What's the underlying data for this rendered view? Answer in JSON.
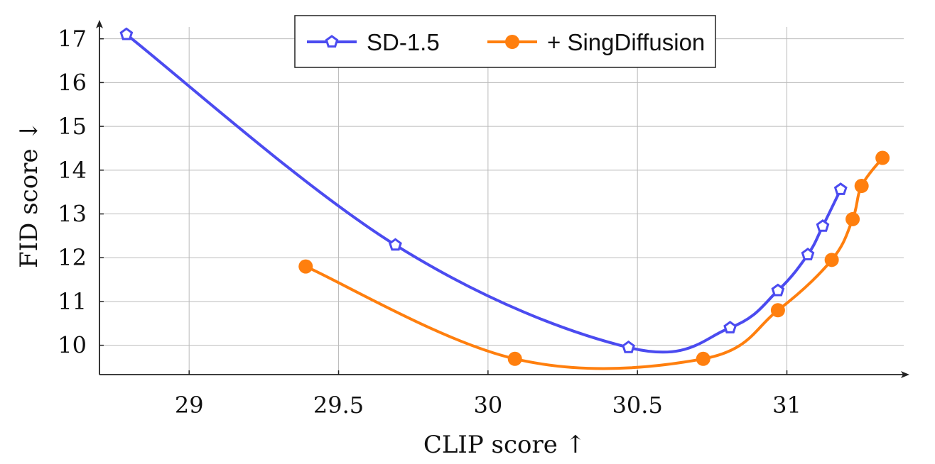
{
  "chart_data": {
    "type": "line",
    "title": "",
    "xlabel": "CLIP score ↑",
    "ylabel": "FID score ↓",
    "xlim": [
      28.7,
      31.41
    ],
    "ylim": [
      9.33,
      17.4
    ],
    "xticks": [
      29,
      29.5,
      30,
      30.5,
      31
    ],
    "xtick_labels": [
      "29",
      "29.5",
      "30",
      "30.5",
      "31"
    ],
    "yticks": [
      10,
      11,
      12,
      13,
      14,
      15,
      16,
      17
    ],
    "ytick_labels": [
      "10",
      "11",
      "12",
      "13",
      "14",
      "15",
      "16",
      "17"
    ],
    "grid": true,
    "legend_placement": "top-center",
    "series": [
      {
        "name": "SD-1.5",
        "color": "#4b4bf0",
        "marker": "pentagon-open",
        "x": [
          28.79,
          29.69,
          30.47,
          30.81,
          30.97,
          31.07,
          31.12,
          31.18
        ],
        "y": [
          17.1,
          12.29,
          9.95,
          10.4,
          11.25,
          12.07,
          12.72,
          13.56
        ]
      },
      {
        "name": "+ SingDiffusion",
        "color": "#ff7f0e",
        "marker": "circle-filled",
        "x": [
          29.39,
          30.09,
          30.72,
          30.97,
          31.15,
          31.22,
          31.25,
          31.32
        ],
        "y": [
          11.8,
          9.69,
          9.69,
          10.8,
          11.95,
          12.88,
          13.64,
          14.28
        ]
      }
    ]
  }
}
